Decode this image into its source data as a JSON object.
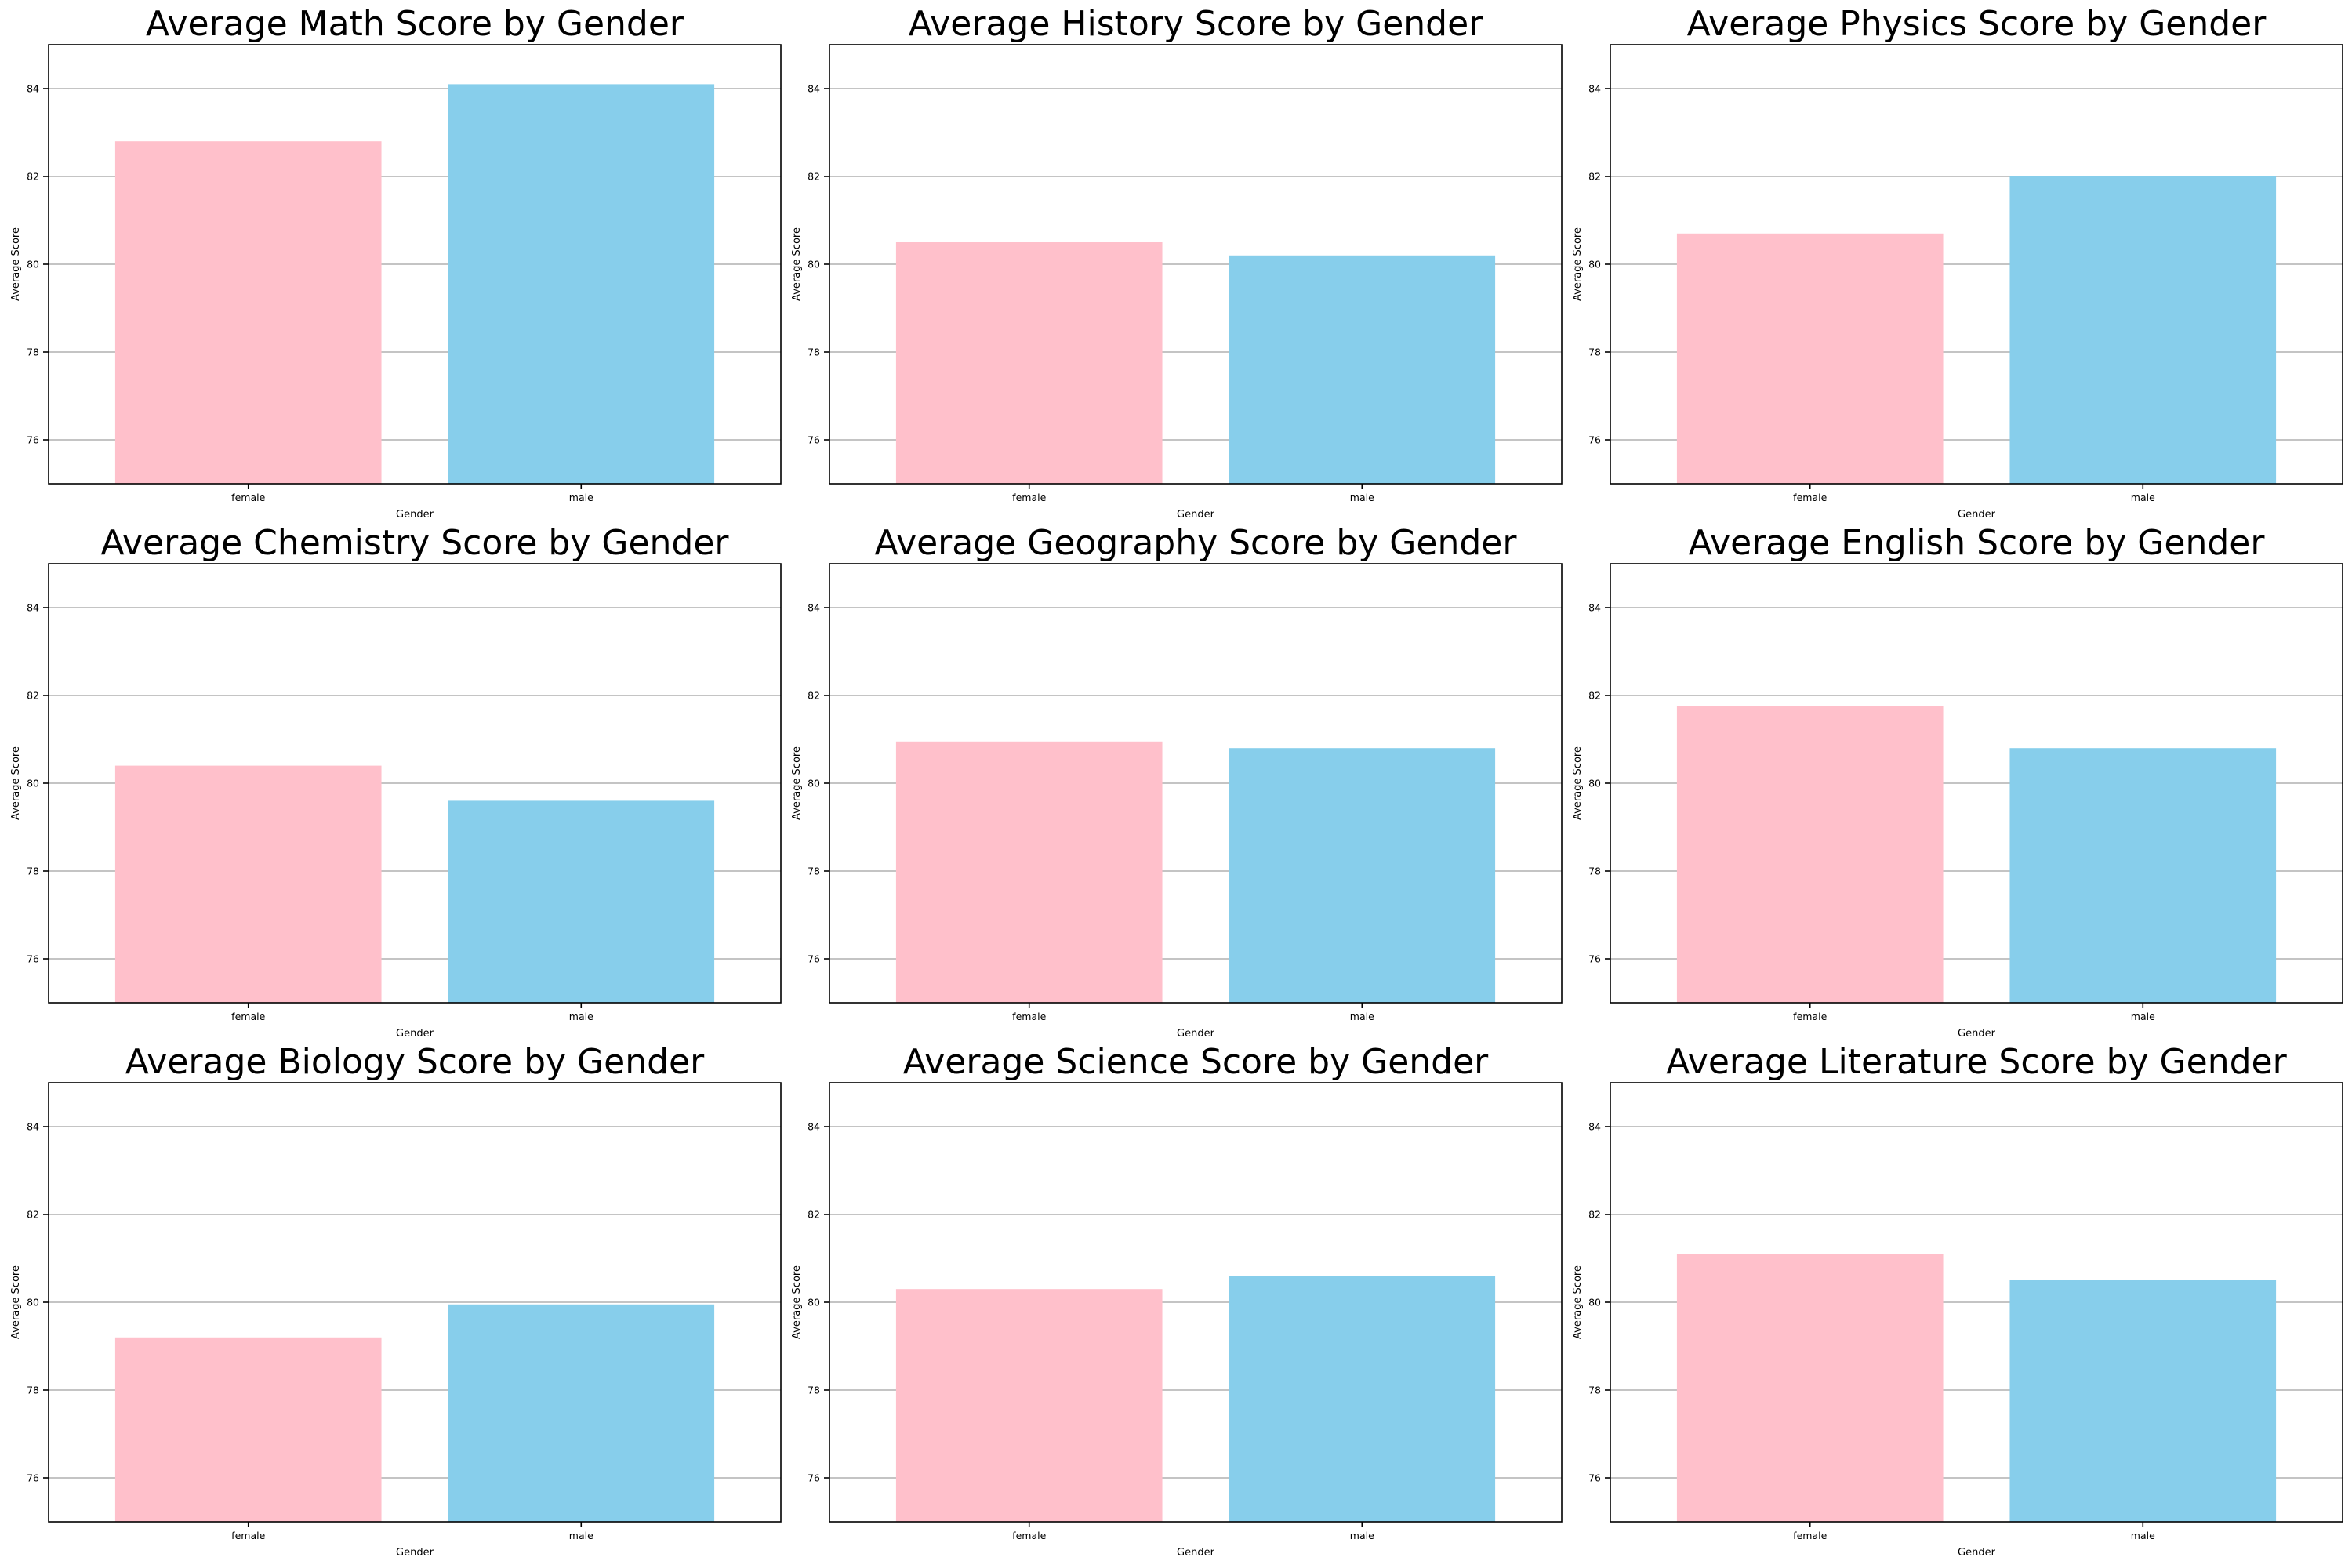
{
  "colors": {
    "female": "#FFC0CB",
    "male": "#87CEEB",
    "grid": "#B0B0B0"
  },
  "chart_data": [
    {
      "type": "bar",
      "title": "Average Math Score by Gender",
      "xlabel": "Gender",
      "ylabel": "Average Score",
      "categories": [
        "female",
        "male"
      ],
      "values": [
        82.8,
        84.1
      ],
      "ylim": [
        75,
        85
      ],
      "yticks": [
        76,
        78,
        80,
        82,
        84
      ],
      "grid": "y"
    },
    {
      "type": "bar",
      "title": "Average History Score by Gender",
      "xlabel": "Gender",
      "ylabel": "Average Score",
      "categories": [
        "female",
        "male"
      ],
      "values": [
        80.5,
        80.2
      ],
      "ylim": [
        75,
        85
      ],
      "yticks": [
        76,
        78,
        80,
        82,
        84
      ],
      "grid": "y"
    },
    {
      "type": "bar",
      "title": "Average Physics Score by Gender",
      "xlabel": "Gender",
      "ylabel": "Average Score",
      "categories": [
        "female",
        "male"
      ],
      "values": [
        80.7,
        82.0
      ],
      "ylim": [
        75,
        85
      ],
      "yticks": [
        76,
        78,
        80,
        82,
        84
      ],
      "grid": "y"
    },
    {
      "type": "bar",
      "title": "Average Chemistry Score by Gender",
      "xlabel": "Gender",
      "ylabel": "Average Score",
      "categories": [
        "female",
        "male"
      ],
      "values": [
        80.4,
        79.6
      ],
      "ylim": [
        75,
        85
      ],
      "yticks": [
        76,
        78,
        80,
        82,
        84
      ],
      "grid": "y"
    },
    {
      "type": "bar",
      "title": "Average Geography Score by Gender",
      "xlabel": "Gender",
      "ylabel": "Average Score",
      "categories": [
        "female",
        "male"
      ],
      "values": [
        80.95,
        80.8
      ],
      "ylim": [
        75,
        85
      ],
      "yticks": [
        76,
        78,
        80,
        82,
        84
      ],
      "grid": "y"
    },
    {
      "type": "bar",
      "title": "Average English Score by Gender",
      "xlabel": "Gender",
      "ylabel": "Average Score",
      "categories": [
        "female",
        "male"
      ],
      "values": [
        81.75,
        80.8
      ],
      "ylim": [
        75,
        85
      ],
      "yticks": [
        76,
        78,
        80,
        82,
        84
      ],
      "grid": "y"
    },
    {
      "type": "bar",
      "title": "Average Biology Score by Gender",
      "xlabel": "Gender",
      "ylabel": "Average Score",
      "categories": [
        "female",
        "male"
      ],
      "values": [
        79.2,
        79.95
      ],
      "ylim": [
        75,
        85
      ],
      "yticks": [
        76,
        78,
        80,
        82,
        84
      ],
      "grid": "y"
    },
    {
      "type": "bar",
      "title": "Average Science Score by Gender",
      "xlabel": "Gender",
      "ylabel": "Average Score",
      "categories": [
        "female",
        "male"
      ],
      "values": [
        80.3,
        80.6
      ],
      "ylim": [
        75,
        85
      ],
      "yticks": [
        76,
        78,
        80,
        82,
        84
      ],
      "grid": "y"
    },
    {
      "type": "bar",
      "title": "Average Literature Score by Gender",
      "xlabel": "Gender",
      "ylabel": "Average Score",
      "categories": [
        "female",
        "male"
      ],
      "values": [
        81.1,
        80.5
      ],
      "ylim": [
        75,
        85
      ],
      "yticks": [
        76,
        78,
        80,
        82,
        84
      ],
      "grid": "y"
    }
  ]
}
